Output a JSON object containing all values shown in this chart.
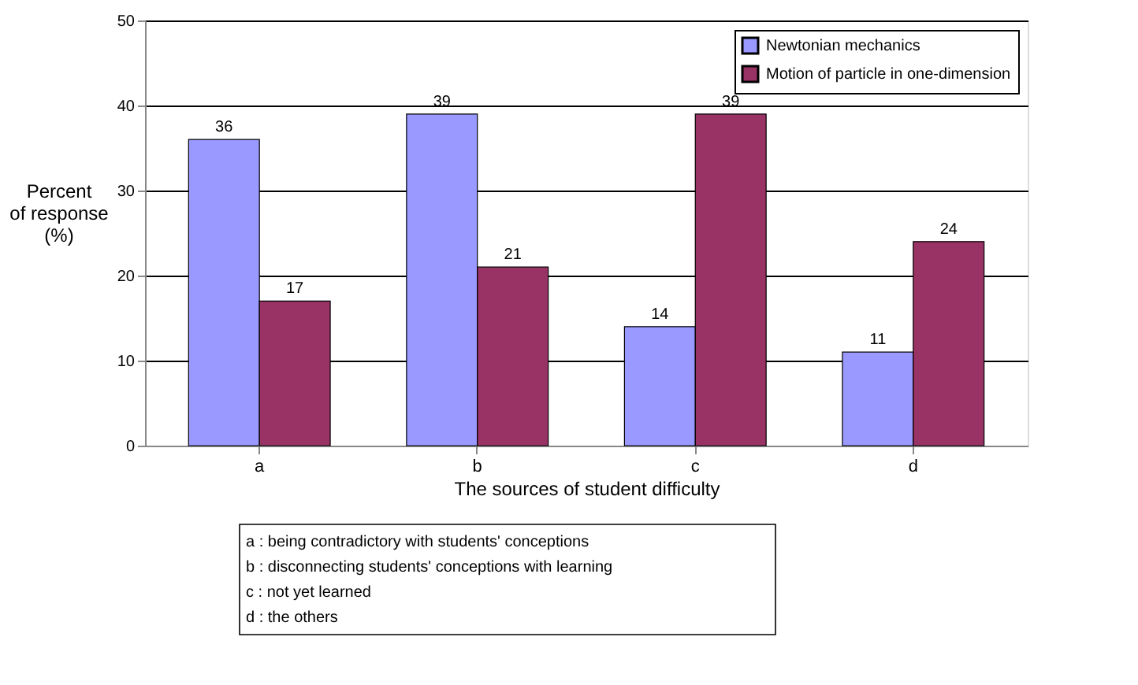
{
  "chart_data": {
    "type": "bar",
    "xlabel": "The sources of student difficulty",
    "ylabel": "Percent of response (%)",
    "categories": [
      "a",
      "b",
      "c",
      "d"
    ],
    "series": [
      {
        "name": "Newtonian mechanics",
        "color": "#9999ff",
        "values": [
          36,
          39,
          14,
          11
        ]
      },
      {
        "name": "Motion of particle in one-dimension",
        "color": "#993366",
        "values": [
          17,
          21,
          39,
          24
        ]
      }
    ],
    "ylim": [
      0,
      50
    ],
    "yticks": [
      0,
      10,
      20,
      30,
      40,
      50
    ],
    "grid": "y",
    "legend": "top right",
    "data_labels": true,
    "annotations": [
      "a : being contradictory with students' conceptions",
      "b : disconnecting students' conceptions with learning",
      "c : not yet learned",
      "d : the others"
    ]
  }
}
